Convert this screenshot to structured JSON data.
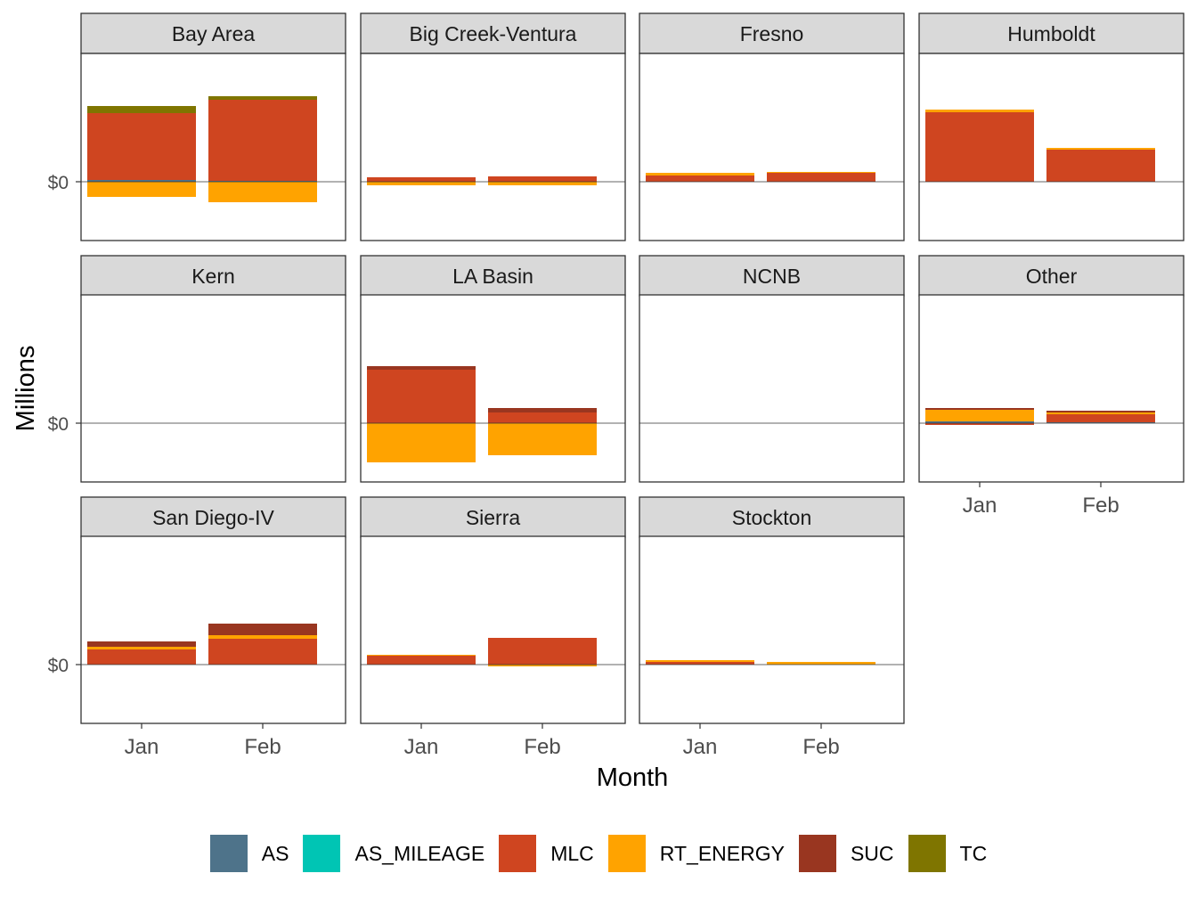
{
  "chart_data": {
    "type": "bar",
    "stacked": true,
    "faceted": true,
    "xlabel": "Month",
    "ylabel": "Millions",
    "y_tick_label": "$0",
    "categories": [
      "Jan",
      "Feb"
    ],
    "ylim": [
      -3.2,
      7.0
    ],
    "series_names": [
      "AS",
      "AS_MILEAGE",
      "MLC",
      "RT_ENERGY",
      "SUC",
      "TC"
    ],
    "colors": {
      "AS": "#4e738a",
      "AS_MILEAGE": "#00c5b4",
      "MLC": "#cf4520",
      "RT_ENERGY": "#ffa300",
      "SUC": "#993620",
      "TC": "#7f7500"
    },
    "panels": [
      {
        "name": "Bay Area",
        "values": {
          "Jan": {
            "AS": 0.1,
            "AS_MILEAGE": 0,
            "MLC": 3.75,
            "RT_ENERGY": -0.85,
            "SUC": 0,
            "TC": 0.4
          },
          "Feb": {
            "AS": 0.05,
            "AS_MILEAGE": 0,
            "MLC": 4.55,
            "RT_ENERGY": -1.15,
            "SUC": 0,
            "TC": 0.2
          }
        }
      },
      {
        "name": "Big Creek-Ventura",
        "values": {
          "Jan": {
            "AS": 0,
            "AS_MILEAGE": 0,
            "MLC": 0.25,
            "RT_ENERGY": -0.2,
            "SUC": 0,
            "TC": 0
          },
          "Feb": {
            "AS": 0,
            "AS_MILEAGE": 0,
            "MLC": 0.3,
            "RT_ENERGY": -0.2,
            "SUC": 0,
            "TC": 0
          }
        }
      },
      {
        "name": "Fresno",
        "values": {
          "Jan": {
            "AS": 0,
            "AS_MILEAGE": 0,
            "MLC": 0.35,
            "RT_ENERGY": 0.15,
            "SUC": 0,
            "TC": 0
          },
          "Feb": {
            "AS": 0,
            "AS_MILEAGE": 0,
            "MLC": 0.5,
            "RT_ENERGY": 0.05,
            "SUC": 0,
            "TC": 0
          }
        }
      },
      {
        "name": "Humboldt",
        "values": {
          "Jan": {
            "AS": 0,
            "AS_MILEAGE": 0,
            "MLC": 3.9,
            "RT_ENERGY": 0.15,
            "SUC": 0,
            "TC": 0
          },
          "Feb": {
            "AS": 0,
            "AS_MILEAGE": 0,
            "MLC": 1.8,
            "RT_ENERGY": 0.1,
            "SUC": 0,
            "TC": 0
          }
        }
      },
      {
        "name": "Kern",
        "values": {
          "Jan": {
            "AS": 0,
            "AS_MILEAGE": 0,
            "MLC": 0,
            "RT_ENERGY": 0,
            "SUC": 0,
            "TC": 0
          },
          "Feb": {
            "AS": 0,
            "AS_MILEAGE": 0,
            "MLC": 0,
            "RT_ENERGY": 0,
            "SUC": 0,
            "TC": 0
          }
        }
      },
      {
        "name": "LA Basin",
        "values": {
          "Jan": {
            "AS": 0,
            "AS_MILEAGE": 0,
            "MLC": 3.0,
            "RT_ENERGY": -2.2,
            "SUC": 0.2,
            "TC": 0
          },
          "Feb": {
            "AS": 0,
            "AS_MILEAGE": 0,
            "MLC": 0.6,
            "RT_ENERGY": -1.8,
            "SUC": 0.25,
            "TC": 0
          }
        }
      },
      {
        "name": "NCNB",
        "values": {
          "Jan": {
            "AS": 0,
            "AS_MILEAGE": 0,
            "MLC": 0,
            "RT_ENERGY": 0,
            "SUC": 0,
            "TC": 0
          },
          "Feb": {
            "AS": 0,
            "AS_MILEAGE": 0,
            "MLC": 0,
            "RT_ENERGY": 0,
            "SUC": 0,
            "TC": 0
          }
        }
      },
      {
        "name": "Other",
        "values": {
          "Jan": {
            "AS": 0.1,
            "AS_MILEAGE": 0,
            "MLC": -0.1,
            "RT_ENERGY": 0.65,
            "SUC": 0.1,
            "TC": 0
          },
          "Feb": {
            "AS": 0.05,
            "AS_MILEAGE": 0,
            "MLC": 0.45,
            "RT_ENERGY": 0.1,
            "SUC": 0.1,
            "TC": 0
          }
        }
      },
      {
        "name": "San Diego-IV",
        "values": {
          "Jan": {
            "AS": 0,
            "AS_MILEAGE": 0,
            "MLC": 0.85,
            "RT_ENERGY": 0.15,
            "SUC": 0.3,
            "TC": 0
          },
          "Feb": {
            "AS": 0,
            "AS_MILEAGE": 0,
            "MLC": 1.45,
            "RT_ENERGY": 0.2,
            "SUC": 0.65,
            "TC": 0
          }
        }
      },
      {
        "name": "Sierra",
        "values": {
          "Jan": {
            "AS": 0,
            "AS_MILEAGE": 0,
            "MLC": 0.5,
            "RT_ENERGY": 0.05,
            "SUC": 0,
            "TC": 0
          },
          "Feb": {
            "AS": 0,
            "AS_MILEAGE": 0,
            "MLC": 1.5,
            "RT_ENERGY": -0.1,
            "SUC": 0,
            "TC": 0
          }
        }
      },
      {
        "name": "Stockton",
        "values": {
          "Jan": {
            "AS": 0,
            "AS_MILEAGE": 0,
            "MLC": 0.15,
            "RT_ENERGY": 0.1,
            "SUC": 0,
            "TC": 0
          },
          "Feb": {
            "AS": 0,
            "AS_MILEAGE": 0,
            "MLC": 0,
            "RT_ENERGY": 0.15,
            "SUC": 0,
            "TC": 0
          }
        }
      }
    ]
  }
}
